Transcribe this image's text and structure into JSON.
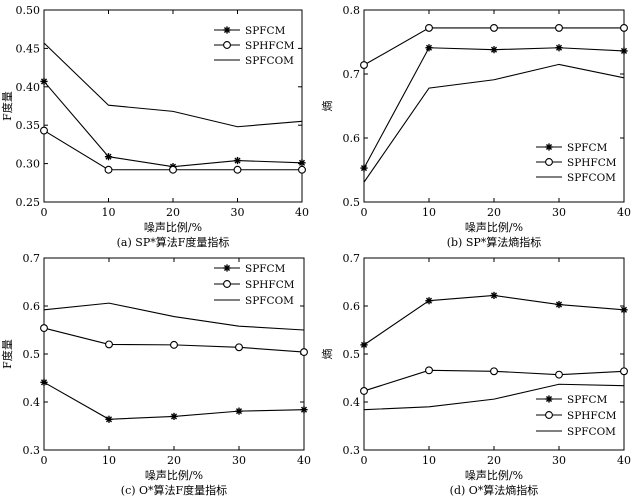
{
  "figure": {
    "chart_data": [
      {
        "id": "a",
        "type": "line",
        "caption": "(a) SP*算法F度量指标",
        "xlabel": "噪声比例/%",
        "ylabel": "F度量",
        "xlim": [
          0,
          40
        ],
        "ylim": [
          0.25,
          0.5
        ],
        "xticks": [
          0,
          10,
          20,
          30,
          40
        ],
        "yticks": [
          0.25,
          0.3,
          0.35,
          0.4,
          0.45,
          0.5
        ],
        "yticklabels": [
          "0.25",
          "0.30",
          "0.35",
          "0.40",
          "0.45",
          "0.50"
        ],
        "legend_position": "top-right",
        "x": [
          0,
          10,
          20,
          30,
          40
        ],
        "series": [
          {
            "name": "SPFCM",
            "marker": "star",
            "values": [
              0.407,
              0.309,
              0.296,
              0.304,
              0.301
            ]
          },
          {
            "name": "SPHFCM",
            "marker": "circle",
            "values": [
              0.343,
              0.292,
              0.292,
              0.292,
              0.292
            ]
          },
          {
            "name": "SPFCOM",
            "marker": "none",
            "values": [
              0.457,
              0.376,
              0.368,
              0.348,
              0.355
            ]
          }
        ]
      },
      {
        "id": "b",
        "type": "line",
        "caption": "(b) SP*算法熵指标",
        "xlabel": "噪声比例/%",
        "ylabel": "熵",
        "xlim": [
          0,
          40
        ],
        "ylim": [
          0.5,
          0.8
        ],
        "xticks": [
          0,
          10,
          20,
          30,
          40
        ],
        "yticks": [
          0.5,
          0.6,
          0.7,
          0.8
        ],
        "yticklabels": [
          "0.5",
          "0.6",
          "0.7",
          "0.8"
        ],
        "legend_position": "bottom-right",
        "x": [
          0,
          10,
          20,
          30,
          40
        ],
        "series": [
          {
            "name": "SPFCM",
            "marker": "star",
            "values": [
              0.553,
              0.741,
              0.738,
              0.741,
              0.736
            ]
          },
          {
            "name": "SPHFCM",
            "marker": "circle",
            "values": [
              0.714,
              0.772,
              0.772,
              0.772,
              0.772
            ]
          },
          {
            "name": "SPFCOM",
            "marker": "none",
            "values": [
              0.531,
              0.678,
              0.691,
              0.715,
              0.694
            ]
          }
        ]
      },
      {
        "id": "c",
        "type": "line",
        "caption": "(c) O*算法F度量指标",
        "xlabel": "噪声比例/%",
        "ylabel": "F度量",
        "xlim": [
          0,
          40
        ],
        "ylim": [
          0.3,
          0.7
        ],
        "xticks": [
          0,
          10,
          20,
          30,
          40
        ],
        "yticks": [
          0.3,
          0.4,
          0.5,
          0.6,
          0.7
        ],
        "yticklabels": [
          "0.3",
          "0.4",
          "0.5",
          "0.6",
          "0.7"
        ],
        "legend_position": "top-right",
        "x": [
          0,
          10,
          20,
          30,
          40
        ],
        "series": [
          {
            "name": "SPFCM",
            "marker": "star",
            "values": [
              0.441,
              0.364,
              0.37,
              0.381,
              0.384
            ]
          },
          {
            "name": "SPHFCM",
            "marker": "circle",
            "values": [
              0.554,
              0.52,
              0.519,
              0.514,
              0.504
            ]
          },
          {
            "name": "SPFCOM",
            "marker": "none",
            "values": [
              0.592,
              0.606,
              0.578,
              0.558,
              0.55
            ]
          }
        ]
      },
      {
        "id": "d",
        "type": "line",
        "caption": "(d) O*算法熵指标",
        "xlabel": "噪声比例/%",
        "ylabel": "熵",
        "xlim": [
          0,
          40
        ],
        "ylim": [
          0.3,
          0.7
        ],
        "xticks": [
          0,
          10,
          20,
          30,
          40
        ],
        "yticks": [
          0.3,
          0.4,
          0.5,
          0.6,
          0.7
        ],
        "yticklabels": [
          "0.3",
          "0.4",
          "0.5",
          "0.6",
          "0.7"
        ],
        "legend_position": "bottom-right",
        "x": [
          0,
          10,
          20,
          30,
          40
        ],
        "series": [
          {
            "name": "SPFCM",
            "marker": "star",
            "values": [
              0.519,
              0.611,
              0.622,
              0.603,
              0.592
            ]
          },
          {
            "name": "SPHFCM",
            "marker": "circle",
            "values": [
              0.423,
              0.466,
              0.464,
              0.457,
              0.464
            ]
          },
          {
            "name": "SPFCOM",
            "marker": "none",
            "values": [
              0.384,
              0.39,
              0.406,
              0.437,
              0.434
            ]
          }
        ]
      }
    ]
  }
}
